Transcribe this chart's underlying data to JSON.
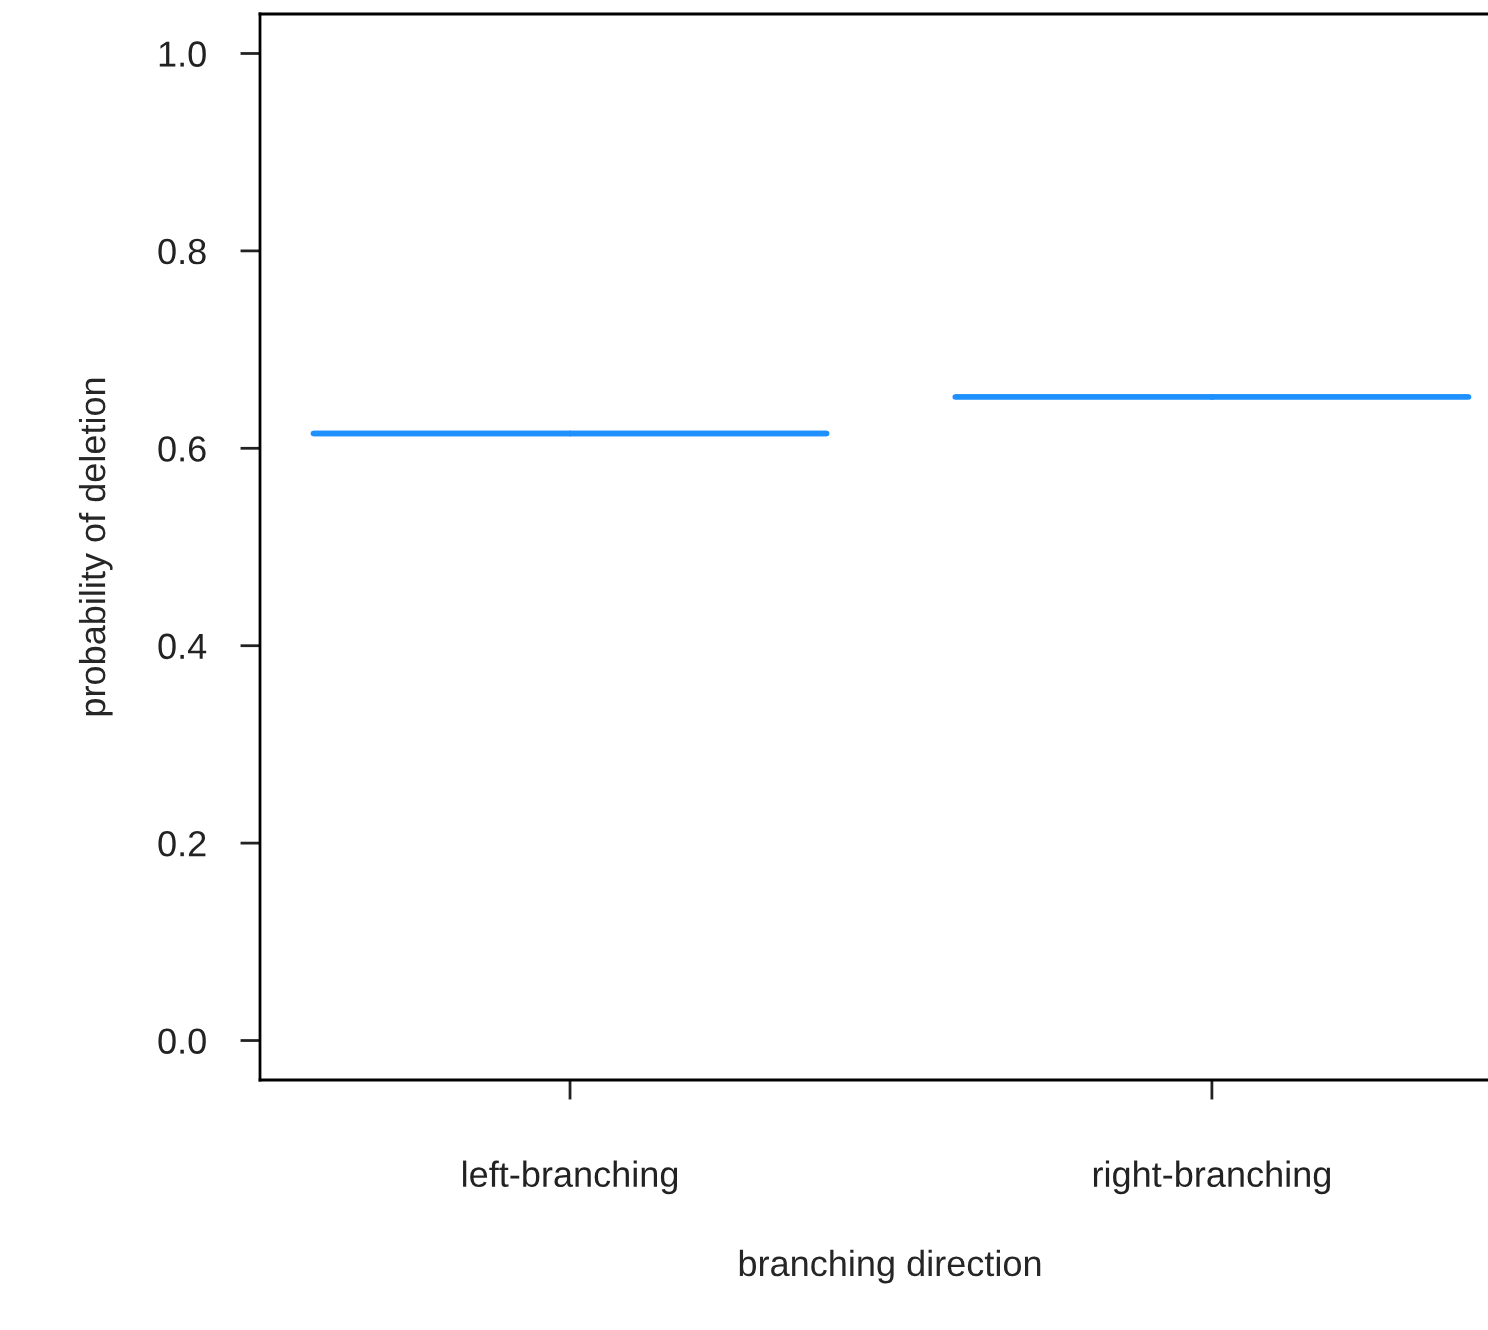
{
  "chart_data": {
    "type": "box",
    "xlabel": "branching direction",
    "ylabel": "probability of deletion",
    "categories": [
      "left-branching",
      "right-branching"
    ],
    "series": [
      {
        "color": "#1e90ff",
        "boxes": [
          {
            "low": 0.615,
            "q1": 0.615,
            "median": 0.615,
            "q3": 0.615,
            "high": 0.615
          },
          {
            "low": 0.652,
            "q1": 0.652,
            "median": 0.652,
            "q3": 0.652,
            "high": 0.652
          }
        ]
      }
    ],
    "ylim": [
      -0.04,
      1.04
    ],
    "yticks": [
      {
        "value": 0,
        "label": "0.0"
      },
      0.2,
      0.4,
      0.6,
      0.8,
      {
        "value": 1,
        "label": "1.0"
      }
    ],
    "grid": false,
    "legend": false
  }
}
